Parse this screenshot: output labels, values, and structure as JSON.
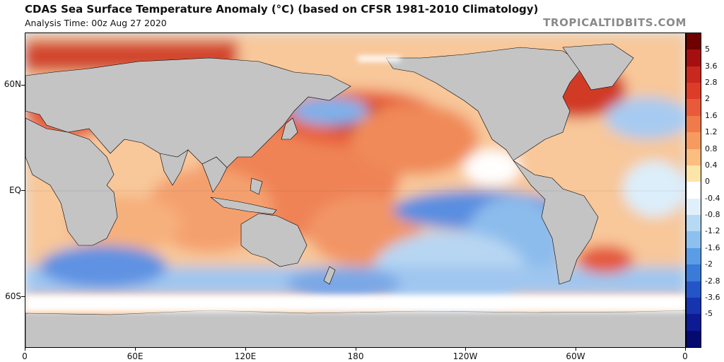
{
  "header": {
    "title": "CDAS Sea Surface Temperature Anomaly (°C) (based on CFSR 1981-2010 Climatology)",
    "analysis_time": "Analysis Time: 00z Aug 27 2020",
    "watermark": "TROPICALTIDBITS.COM"
  },
  "axes": {
    "latitude_labels": [
      "60N",
      "EQ",
      "60S"
    ],
    "longitude_labels": [
      "0",
      "60E",
      "120E",
      "180",
      "120W",
      "60W",
      "0"
    ]
  },
  "colorbar": {
    "unit": "°C",
    "labels": [
      "5",
      "3.6",
      "2.8",
      "2",
      "1.6",
      "1.2",
      "0.8",
      "0.4",
      "0",
      "-0.4",
      "-0.8",
      "-1.2",
      "-1.6",
      "-2",
      "-2.8",
      "-3.6",
      "-5"
    ],
    "colors": [
      "#6e0000",
      "#a50f0f",
      "#c8281e",
      "#dc3c28",
      "#e85a3a",
      "#f07a4a",
      "#f69a60",
      "#fbbd80",
      "#fde4a8",
      "#ffffff",
      "#e0f0fb",
      "#b6d9f4",
      "#8cc0ee",
      "#5a9ce6",
      "#3a7ad8",
      "#2455c8",
      "#1634b0",
      "#0c1a94",
      "#050a70"
    ]
  },
  "map": {
    "land_color": "#c4c4c4",
    "ice_color": "#ffffff",
    "coastline_color": "#000000"
  }
}
